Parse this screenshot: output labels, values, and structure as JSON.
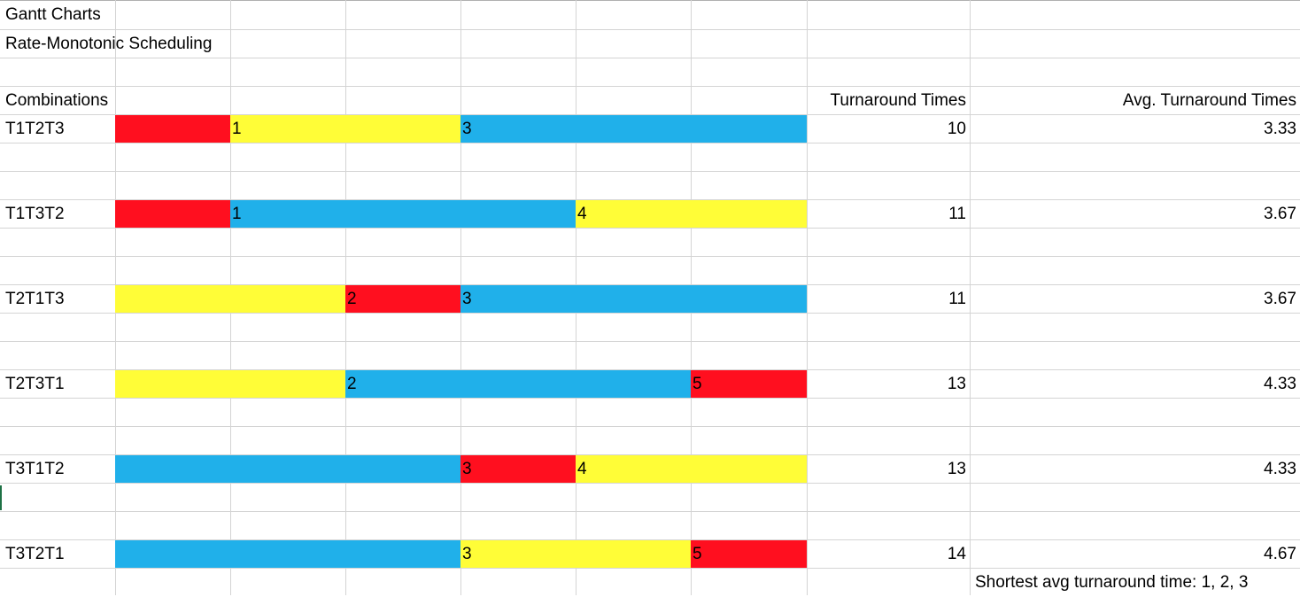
{
  "title": "Gantt Charts",
  "subtitle": "Rate-Monotonic Scheduling",
  "headers": {
    "combinations": "Combinations",
    "turnaround": "Turnaround Times",
    "avg_turnaround": "Avg. Turnaround Times"
  },
  "colors": {
    "T1": "#ff0f1f",
    "T2": "#fffd37",
    "T3": "#20b0ea"
  },
  "rows": [
    {
      "label": "T1T2T3",
      "turnaround": "10",
      "avg": "3.33",
      "segments": [
        {
          "task": "T1",
          "label": ""
        },
        {
          "task": "T2",
          "label": "1"
        },
        {
          "task": "T3",
          "label": "3"
        }
      ]
    },
    {
      "label": "T1T3T2",
      "turnaround": "11",
      "avg": "3.67",
      "segments": [
        {
          "task": "T1",
          "label": ""
        },
        {
          "task": "T3",
          "label": "1"
        },
        {
          "task": "T2",
          "label": "4"
        }
      ]
    },
    {
      "label": "T2T1T3",
      "turnaround": "11",
      "avg": "3.67",
      "segments": [
        {
          "task": "T2",
          "label": ""
        },
        {
          "task": "T1",
          "label": "2"
        },
        {
          "task": "T3",
          "label": "3"
        }
      ]
    },
    {
      "label": "T2T3T1",
      "turnaround": "13",
      "avg": "4.33",
      "segments": [
        {
          "task": "T2",
          "label": ""
        },
        {
          "task": "T3",
          "label": "2"
        },
        {
          "task": "T1",
          "label": "5"
        }
      ]
    },
    {
      "label": "T3T1T2",
      "turnaround": "13",
      "avg": "4.33",
      "segments": [
        {
          "task": "T3",
          "label": ""
        },
        {
          "task": "T1",
          "label": "3"
        },
        {
          "task": "T2",
          "label": "4"
        }
      ]
    },
    {
      "label": "T3T2T1",
      "turnaround": "14",
      "avg": "4.67",
      "segments": [
        {
          "task": "T3",
          "label": ""
        },
        {
          "task": "T2",
          "label": "3"
        },
        {
          "task": "T1",
          "label": "5"
        }
      ]
    }
  ],
  "conclusion": "Shortest avg turnaround time: 1, 2, 3"
}
